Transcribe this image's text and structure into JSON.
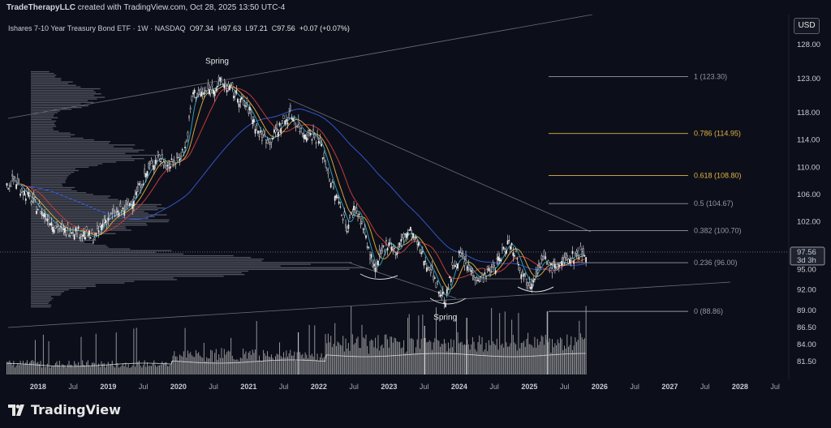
{
  "header": {
    "credit_user": "TradeTherapyLLC",
    "credit_rest": " created with TradingView.com, Oct 28, 2025 13:50 UTC-4"
  },
  "currency_button": "USD",
  "legend": {
    "symbol": "Ishares 7-10 Year Treasury Bond ETF · 1W · NASDAQ",
    "open_label": "O",
    "open": "97.34",
    "high_label": "H",
    "high": "97.63",
    "low_label": "L",
    "low": "97.21",
    "close_label": "C",
    "close": "97.56",
    "change": "+0.07 (+0.07%)"
  },
  "footer": {
    "brand": "TradingView"
  },
  "colors": {
    "background": "#0c0f1a",
    "candle_up": "#e8e8e8",
    "volume": "#bfbfbf",
    "ma_blue": "#3455c9",
    "ma_red": "#c43b3b",
    "ma_orange": "#d9a13b",
    "ma_teal": "#2e9bb0",
    "fib_white": "#9598a1",
    "fib_gold": "#e0b341"
  },
  "chart_data": {
    "type": "line",
    "title": "Ishares 7-10 Year Treasury Bond ETF · 1W · NASDAQ",
    "xlabel": "",
    "ylabel": "",
    "ylim": [
      79.5,
      130
    ],
    "y_ticks": [
      "128.00",
      "123.00",
      "118.00",
      "114.00",
      "110.00",
      "106.00",
      "102.00",
      "95.00",
      "92.00",
      "89.00",
      "86.50",
      "84.00",
      "81.50"
    ],
    "x_ticks": [
      {
        "label": "2018",
        "year": 2018.0,
        "major": true
      },
      {
        "label": "Jul",
        "year": 2018.5,
        "major": false
      },
      {
        "label": "2019",
        "year": 2019.0,
        "major": true
      },
      {
        "label": "Jul",
        "year": 2019.5,
        "major": false
      },
      {
        "label": "2020",
        "year": 2020.0,
        "major": true
      },
      {
        "label": "Jul",
        "year": 2020.5,
        "major": false
      },
      {
        "label": "2021",
        "year": 2021.0,
        "major": true
      },
      {
        "label": "Jul",
        "year": 2021.5,
        "major": false
      },
      {
        "label": "2022",
        "year": 2022.0,
        "major": true
      },
      {
        "label": "Jul",
        "year": 2022.5,
        "major": false
      },
      {
        "label": "2023",
        "year": 2023.0,
        "major": true
      },
      {
        "label": "Jul",
        "year": 2023.5,
        "major": false
      },
      {
        "label": "2024",
        "year": 2024.0,
        "major": true
      },
      {
        "label": "Jul",
        "year": 2024.5,
        "major": false
      },
      {
        "label": "2025",
        "year": 2025.0,
        "major": true
      },
      {
        "label": "Jul",
        "year": 2025.5,
        "major": false
      },
      {
        "label": "2026",
        "year": 2026.0,
        "major": true
      },
      {
        "label": "Jul",
        "year": 2026.5,
        "major": false
      },
      {
        "label": "2027",
        "year": 2027.0,
        "major": true
      },
      {
        "label": "Jul",
        "year": 2027.5,
        "major": false
      },
      {
        "label": "2028",
        "year": 2028.0,
        "major": true
      },
      {
        "label": "Jul",
        "year": 2028.5,
        "major": false
      }
    ],
    "price": [
      [
        2017.55,
        107.2
      ],
      [
        2017.65,
        108.3
      ],
      [
        2017.75,
        106.8
      ],
      [
        2017.9,
        105.2
      ],
      [
        2018.05,
        103.4
      ],
      [
        2018.2,
        101.8
      ],
      [
        2018.35,
        100.6
      ],
      [
        2018.5,
        100.9
      ],
      [
        2018.65,
        100.2
      ],
      [
        2018.8,
        99.6
      ],
      [
        2018.95,
        102.3
      ],
      [
        2019.1,
        103.2
      ],
      [
        2019.25,
        104.0
      ],
      [
        2019.4,
        106.2
      ],
      [
        2019.55,
        109.4
      ],
      [
        2019.7,
        111.6
      ],
      [
        2019.85,
        110.2
      ],
      [
        2019.95,
        110.8
      ],
      [
        2020.1,
        113.0
      ],
      [
        2020.2,
        121.0
      ],
      [
        2020.3,
        120.6
      ],
      [
        2020.45,
        121.4
      ],
      [
        2020.6,
        122.5
      ],
      [
        2020.75,
        121.3
      ],
      [
        2020.9,
        119.6
      ],
      [
        2021.0,
        118.5
      ],
      [
        2021.15,
        114.8
      ],
      [
        2021.3,
        113.9
      ],
      [
        2021.45,
        116.2
      ],
      [
        2021.6,
        117.8
      ],
      [
        2021.75,
        115.2
      ],
      [
        2021.9,
        114.8
      ],
      [
        2022.0,
        113.9
      ],
      [
        2022.1,
        110.2
      ],
      [
        2022.2,
        106.6
      ],
      [
        2022.3,
        104.3
      ],
      [
        2022.4,
        101.0
      ],
      [
        2022.5,
        104.4
      ],
      [
        2022.6,
        102.1
      ],
      [
        2022.7,
        98.0
      ],
      [
        2022.8,
        94.6
      ],
      [
        2022.9,
        97.8
      ],
      [
        2023.0,
        99.3
      ],
      [
        2023.1,
        97.2
      ],
      [
        2023.2,
        100.0
      ],
      [
        2023.3,
        100.6
      ],
      [
        2023.4,
        98.6
      ],
      [
        2023.5,
        96.4
      ],
      [
        2023.6,
        95.0
      ],
      [
        2023.7,
        92.1
      ],
      [
        2023.8,
        90.5
      ],
      [
        2023.9,
        95.2
      ],
      [
        2024.0,
        97.1
      ],
      [
        2024.1,
        95.6
      ],
      [
        2024.2,
        94.2
      ],
      [
        2024.3,
        93.6
      ],
      [
        2024.4,
        94.5
      ],
      [
        2024.5,
        95.4
      ],
      [
        2024.6,
        97.2
      ],
      [
        2024.7,
        99.2
      ],
      [
        2024.8,
        97.4
      ],
      [
        2024.9,
        94.3
      ],
      [
        2025.0,
        92.9
      ],
      [
        2025.1,
        95.0
      ],
      [
        2025.2,
        96.6
      ],
      [
        2025.3,
        95.2
      ],
      [
        2025.4,
        95.6
      ],
      [
        2025.5,
        96.1
      ],
      [
        2025.6,
        96.9
      ],
      [
        2025.7,
        97.3
      ],
      [
        2025.8,
        97.56
      ]
    ],
    "fib_levels": [
      {
        "ratio": "1",
        "price": 123.3,
        "label": "1 (123.30)",
        "color": "#9598a1"
      },
      {
        "ratio": "0.786",
        "price": 114.95,
        "label": "0.786 (114.95)",
        "color": "#e0b341"
      },
      {
        "ratio": "0.618",
        "price": 108.8,
        "label": "0.618 (108.80)",
        "color": "#e0b341"
      },
      {
        "ratio": "0.5",
        "price": 104.67,
        "label": "0.5 (104.67)",
        "color": "#9598a1"
      },
      {
        "ratio": "0.382",
        "price": 100.7,
        "label": "0.382 (100.70)",
        "color": "#9598a1"
      },
      {
        "ratio": "0.236",
        "price": 96.0,
        "label": "0.236 (96.00)",
        "color": "#9598a1"
      },
      {
        "ratio": "0",
        "price": 88.86,
        "label": "0 (88.86)",
        "color": "#9598a1"
      }
    ],
    "annotations": [
      {
        "text": "Spring",
        "year": 2020.55,
        "price": 125.2
      },
      {
        "text": "Spring",
        "year": 2023.8,
        "price": 87.6
      }
    ],
    "last_price": {
      "value": "97.56",
      "countdown": "3d 3h"
    }
  }
}
